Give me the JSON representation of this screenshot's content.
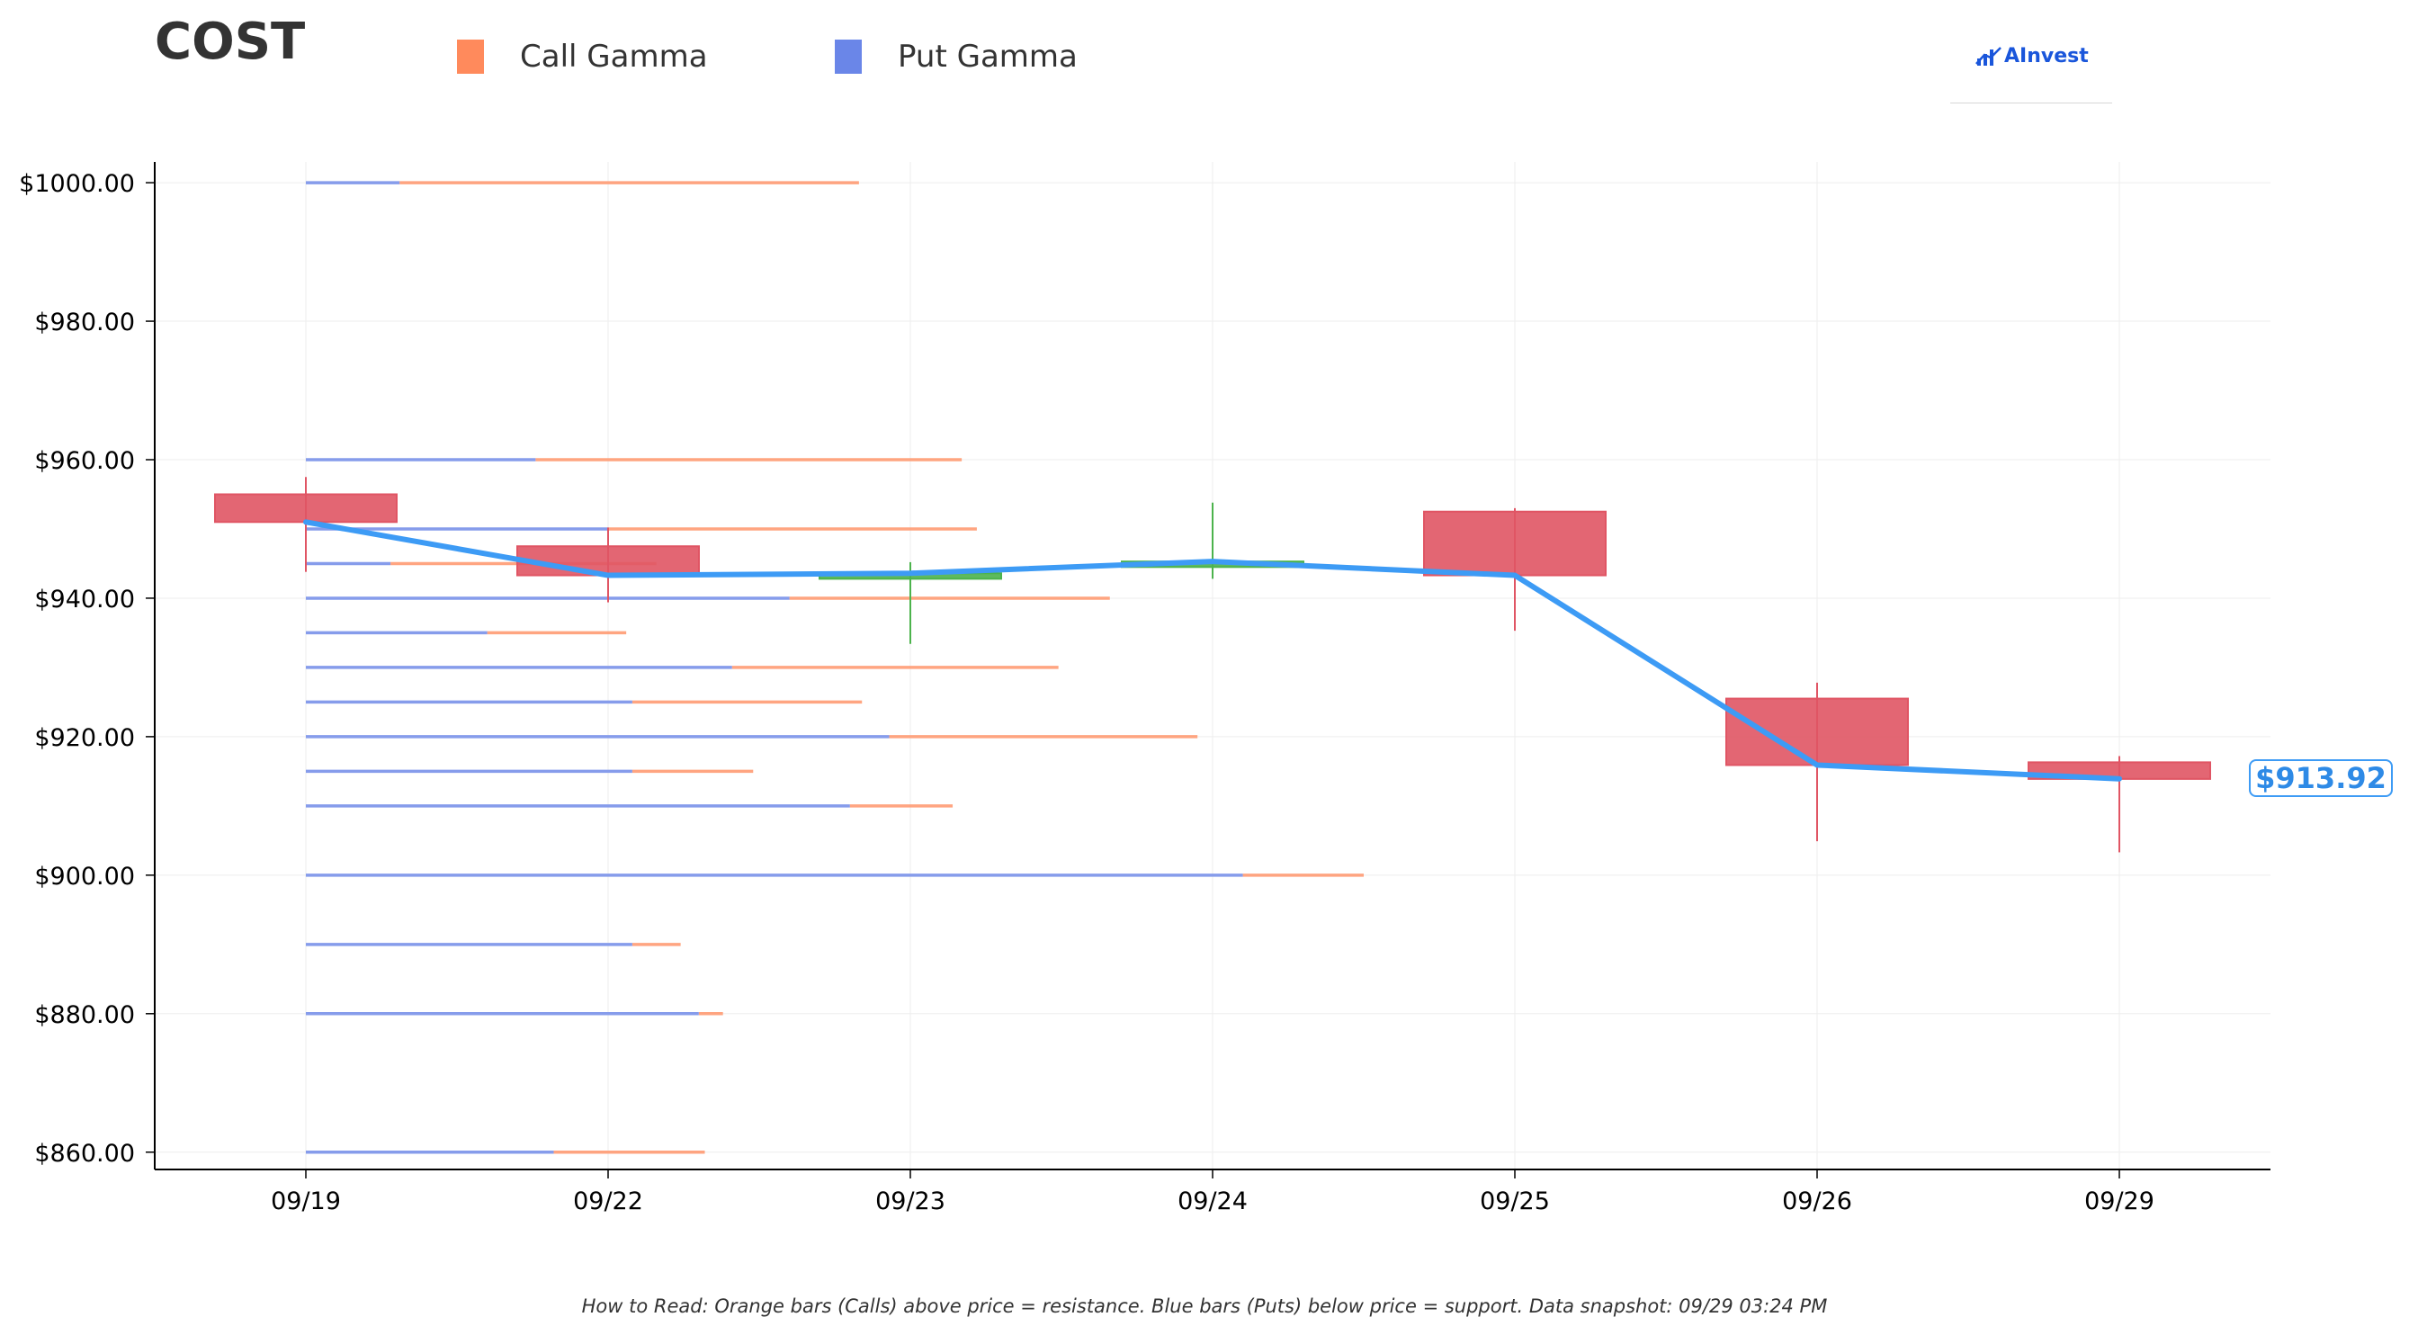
{
  "header": {
    "ticker": "COST",
    "logo_text": "AInvest"
  },
  "legend": [
    {
      "label": "Call Gamma",
      "color": "#ff8a5c"
    },
    {
      "label": "Put Gamma",
      "color": "#6a86e8"
    }
  ],
  "current_price_label": "$913.92",
  "footnote": "How to Read: Orange bars (Calls) above price = resistance. Blue bars (Puts) below price = support. Data snapshot: 09/29 03:24 PM",
  "colors": {
    "down_candle": "#e05564",
    "up_candle": "#4cb34c",
    "price_line": "#3d9bf5",
    "call": "#ff9b73",
    "put": "#7f97ea",
    "grid": "#eeeeee"
  },
  "chart_data": {
    "type": "candlestick",
    "ylim": [
      857.5,
      1003
    ],
    "yticks": [
      1000,
      980,
      960,
      940,
      920,
      900,
      880,
      860
    ],
    "ytick_labels": [
      "$1000.00",
      "$980.00",
      "$960.00",
      "$940.00",
      "$920.00",
      "$900.00",
      "$880.00",
      "$860.00"
    ],
    "categories": [
      "09/19",
      "09/22",
      "09/23",
      "09/24",
      "09/25",
      "09/26",
      "09/29"
    ],
    "candles": [
      {
        "date": "09/19",
        "open": 955.0,
        "high": 957.5,
        "low": 943.8,
        "close": 951.0
      },
      {
        "date": "09/22",
        "open": 947.5,
        "high": 950.2,
        "low": 939.4,
        "close": 943.3
      },
      {
        "date": "09/23",
        "open": 942.8,
        "high": 945.2,
        "low": 933.4,
        "close": 943.6
      },
      {
        "date": "09/24",
        "open": 944.5,
        "high": 953.8,
        "low": 942.8,
        "close": 945.3
      },
      {
        "date": "09/25",
        "open": 952.5,
        "high": 953.0,
        "low": 935.3,
        "close": 943.3
      },
      {
        "date": "09/26",
        "open": 925.5,
        "high": 927.8,
        "low": 904.9,
        "close": 915.9
      },
      {
        "date": "09/29",
        "open": 916.3,
        "high": 917.2,
        "low": 903.3,
        "close": 913.9
      }
    ],
    "price_line": [
      951.0,
      943.3,
      943.6,
      945.3,
      943.3,
      915.9,
      913.92
    ],
    "gamma_levels": [
      {
        "strike": 1000,
        "put_end": 0.31,
        "call_end": 1.83
      },
      {
        "strike": 960,
        "put_end": 0.76,
        "call_end": 2.17
      },
      {
        "strike": 950,
        "put_end": 1.0,
        "call_end": 2.22
      },
      {
        "strike": 945,
        "put_end": 0.28,
        "call_end": 1.16
      },
      {
        "strike": 940,
        "put_end": 1.6,
        "call_end": 2.66
      },
      {
        "strike": 935,
        "put_end": 0.6,
        "call_end": 1.06
      },
      {
        "strike": 930,
        "put_end": 1.41,
        "call_end": 2.49
      },
      {
        "strike": 925,
        "put_end": 1.08,
        "call_end": 1.84
      },
      {
        "strike": 920,
        "put_end": 1.93,
        "call_end": 2.95
      },
      {
        "strike": 915,
        "put_end": 1.08,
        "call_end": 1.48
      },
      {
        "strike": 910,
        "put_end": 1.8,
        "call_end": 2.14
      },
      {
        "strike": 900,
        "put_end": 3.1,
        "call_end": 3.5
      },
      {
        "strike": 890,
        "put_end": 1.08,
        "call_end": 1.24
      },
      {
        "strike": 880,
        "put_end": 1.3,
        "call_end": 1.38
      },
      {
        "strike": 860,
        "put_end": 0.82,
        "call_end": 1.32
      }
    ]
  }
}
